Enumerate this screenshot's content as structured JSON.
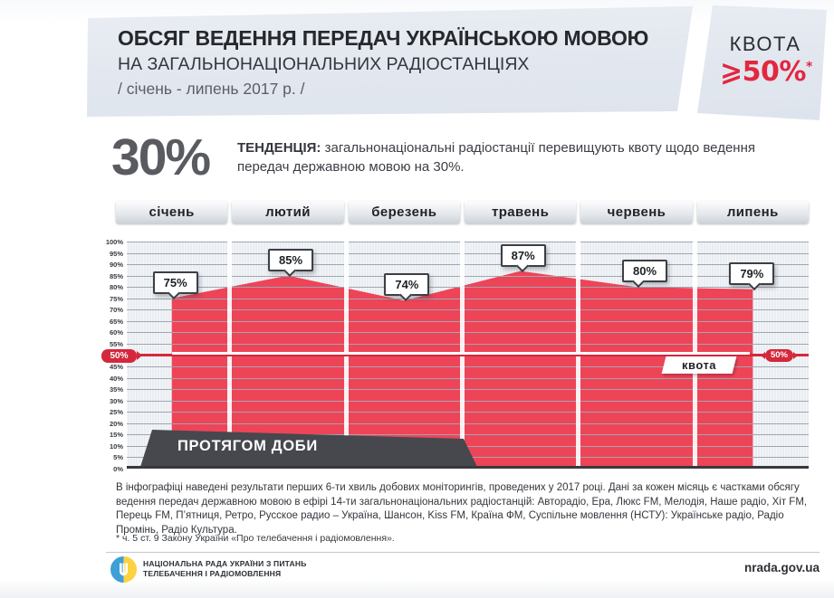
{
  "header": {
    "title_line1": "ОБСЯГ ВЕДЕННЯ ПЕРЕДАЧ УКРАЇНСЬКОЮ МОВОЮ",
    "title_line2": "НА ЗАГАЛЬНОНАЦІОНАЛЬНИХ РАДІОСТАНЦІЯХ",
    "title_line3": "/ січень - липень 2017 р. /",
    "quota_label": "КВОТА",
    "quota_value": "⩾50%",
    "quota_footnote_mark": "*"
  },
  "trend": {
    "big_value": "30%",
    "lead": "ТЕНДЕНЦІЯ:",
    "text": "загальнонаціональні радіостанції перевищують квоту щодо ведення передач  державною мовою на 30%."
  },
  "chart_data": {
    "type": "area",
    "categories": [
      "січень",
      "лютий",
      "березень",
      "травень",
      "червень",
      "липень"
    ],
    "values": [
      75,
      85,
      74,
      87,
      80,
      79
    ],
    "unit": "%",
    "ylim": [
      0,
      100
    ],
    "ytick_step": 5,
    "grid": true,
    "quota_line": 50,
    "quota_line_label": "квота",
    "quota_badge": "50%",
    "banner": "ПРОТЯГОМ ДОБИ",
    "area_color": "#ee4458",
    "quota_color": "#d4283c"
  },
  "yaxis_labels": [
    "100%",
    "95%",
    "90%",
    "85%",
    "80%",
    "75%",
    "70%",
    "65%",
    "60%",
    "55%",
    "50%",
    "45%",
    "40%",
    "35%",
    "30%",
    "25%",
    "20%",
    "15%",
    "10%",
    "5%",
    "0%"
  ],
  "footer": {
    "note": " В інфографіці наведені результати перших 6-ти хвиль добових моніторингів, проведених у 2017 році. Дані за кожен місяць є частками обсягу ведення передач державною мовою в ефірі 14-ти загальнонаціональних радіостанцій: Авторадіо, Ера, Люкс FM, Мелодія, Наше радіо, Хіт FM, Перець FM, П’ятниця, Ретро, Русское радио – Україна, Шансон, Kiss FM, Країна ФМ, Суспільне мовлення (НСТУ): Українське радіо, Радіо Промінь, Радіо Культура.",
    "footnote": "* ч. 5 ст. 9 Закону України «Про телебачення і радіомовлення».",
    "org_line1": "НАЦІОНАЛЬНА РАДА УКРАЇНИ З ПИТАНЬ",
    "org_line2": "ТЕЛЕБАЧЕННЯ І РАДІОМОВЛЕННЯ",
    "website": "nrada.gov.ua"
  }
}
